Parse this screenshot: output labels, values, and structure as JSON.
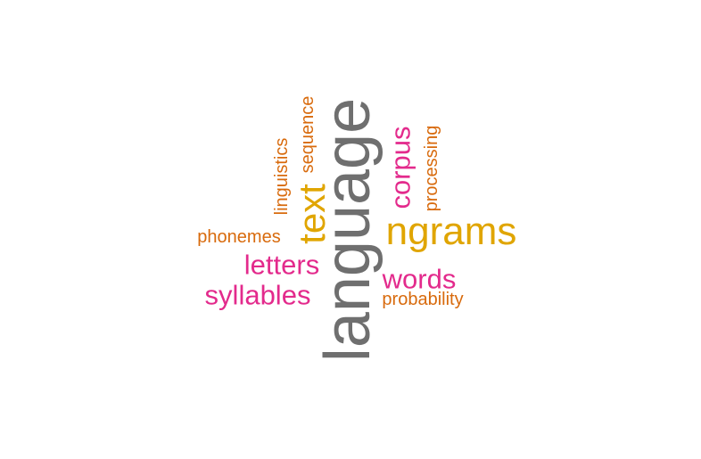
{
  "cloud": {
    "words": {
      "language": {
        "text": "language",
        "color": "#6f6f6f",
        "orientation": "vertical"
      },
      "ngrams": {
        "text": "ngrams",
        "color": "#e0a500",
        "orientation": "horizontal"
      },
      "text": {
        "text": "text",
        "color": "#e0a500",
        "orientation": "vertical"
      },
      "corpus": {
        "text": "corpus",
        "color": "#e32a8c",
        "orientation": "vertical"
      },
      "words": {
        "text": "words",
        "color": "#e32a8c",
        "orientation": "horizontal"
      },
      "letters": {
        "text": "letters",
        "color": "#e32a8c",
        "orientation": "horizontal"
      },
      "syllables": {
        "text": "syllables",
        "color": "#e32a8c",
        "orientation": "horizontal"
      },
      "phonemes": {
        "text": "phonemes",
        "color": "#d86a0c",
        "orientation": "horizontal"
      },
      "probability": {
        "text": "probability",
        "color": "#d86a0c",
        "orientation": "horizontal"
      },
      "linguistics": {
        "text": "linguistics",
        "color": "#d86a0c",
        "orientation": "vertical"
      },
      "sequence": {
        "text": "sequence",
        "color": "#d86a0c",
        "orientation": "vertical"
      },
      "processing": {
        "text": "processing",
        "color": "#d86a0c",
        "orientation": "vertical"
      }
    }
  }
}
